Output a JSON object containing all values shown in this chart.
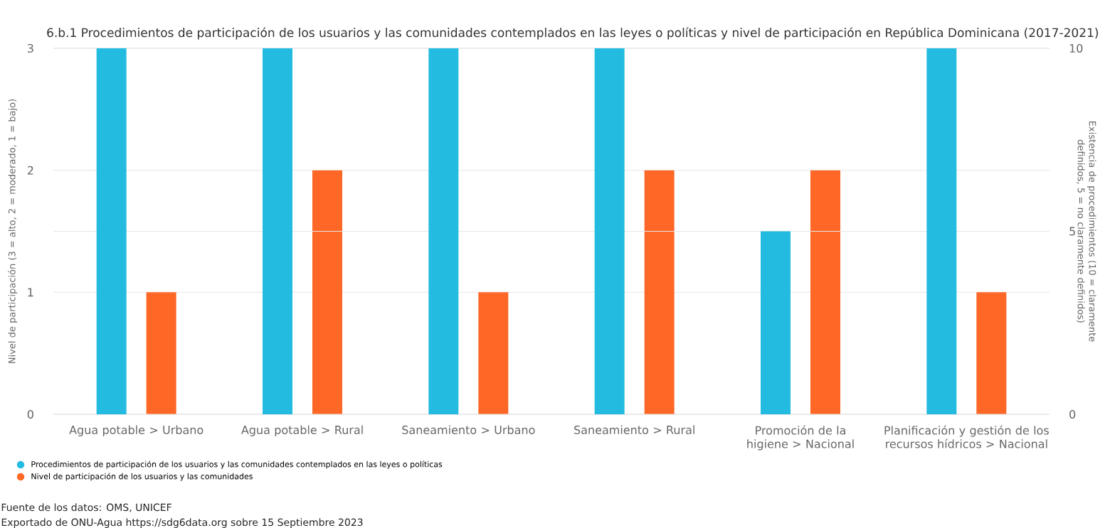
{
  "chart_data": {
    "type": "bar",
    "title": "6.b.1 Procedimientos de participación de los usuarios y las comunidades contemplados en las leyes o políticas y nivel de participación en República Dominicana (2017-2021)",
    "categories": [
      "Agua potable > Urbano",
      "Agua potable > Rural",
      "Saneamiento > Urbano",
      "Saneamiento > Rural",
      "Promoción de la higiene > Nacional",
      "Planificación y gestión de los recursos hídricos > Nacional"
    ],
    "ylabel": "Nivel de participación (3 = alto, 2 = moderado, 1 = bajo)",
    "y2label": "Existencia de procedimientos (10 = claramente definidos, 5 = no claramente definidos)",
    "series": [
      {
        "name": "Procedimientos de participación de los usuarios y las comunidades contemplados en las leyes o políticas",
        "color": "#23bbe0",
        "values": [
          10,
          10,
          10,
          10,
          5,
          10
        ],
        "axis": "y2"
      },
      {
        "name": "Nivel de participación de los usuarios y las comunidades",
        "color": "#fe6726",
        "values": [
          1,
          2,
          1,
          2,
          2,
          1
        ]
      }
    ],
    "ylim": [
      0,
      3
    ],
    "yticks": [
      0,
      1,
      2,
      3
    ],
    "y2lim": [
      0,
      10
    ],
    "y2ticks": [
      0,
      5,
      10
    ],
    "grid": "y",
    "legend": "bottom left",
    "annotations": [
      "Fuente de los datos: OMS, UNICEF",
      "Exportado de ONU-Agua https://sdg6data.org sobre 15 Septiembre 2023"
    ]
  }
}
